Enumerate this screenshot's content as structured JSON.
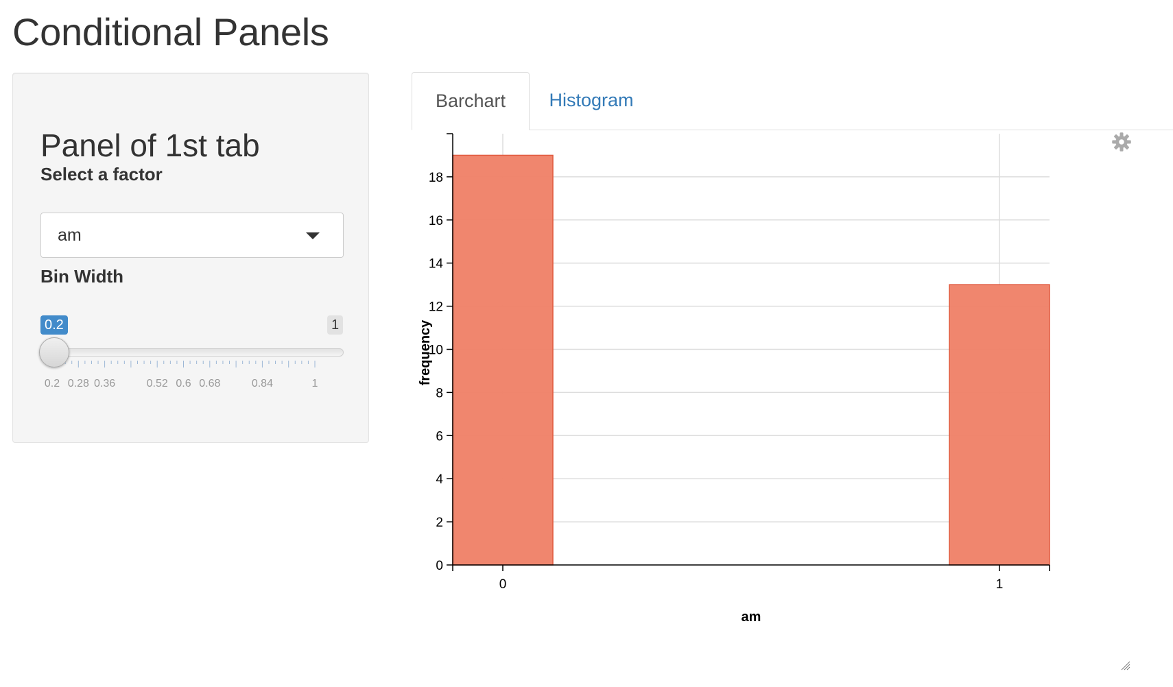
{
  "page": {
    "title": "Conditional Panels"
  },
  "sidebar": {
    "heading": "Panel of 1st tab",
    "factor_label": "Select a factor",
    "factor_value": "am",
    "bin_label": "Bin Width",
    "slider": {
      "value_label": "0.2",
      "max_label": "1",
      "value": 0.2,
      "min": 0.2,
      "max": 1,
      "grid_labels": [
        "0.2",
        "0.28",
        "0.36",
        "0.52",
        "0.6",
        "0.68",
        "0.84",
        "1"
      ]
    }
  },
  "tabs": [
    {
      "label": "Barchart",
      "active": true
    },
    {
      "label": "Histogram",
      "active": false
    }
  ],
  "icons": {
    "settings": "gear-icon",
    "resize": "resize-handle-icon"
  },
  "colors": {
    "bar": "#ef7f66",
    "bar_stroke": "#e05a3f",
    "accent": "#428bca",
    "link": "#337ab7"
  },
  "chart_data": {
    "type": "bar",
    "categories": [
      "0",
      "1"
    ],
    "values": [
      19,
      13
    ],
    "xlabel": "am",
    "ylabel": "frequency",
    "ylim": [
      0,
      20
    ],
    "yticks": [
      0,
      2,
      4,
      6,
      8,
      10,
      12,
      14,
      16,
      18
    ],
    "grid": true
  }
}
